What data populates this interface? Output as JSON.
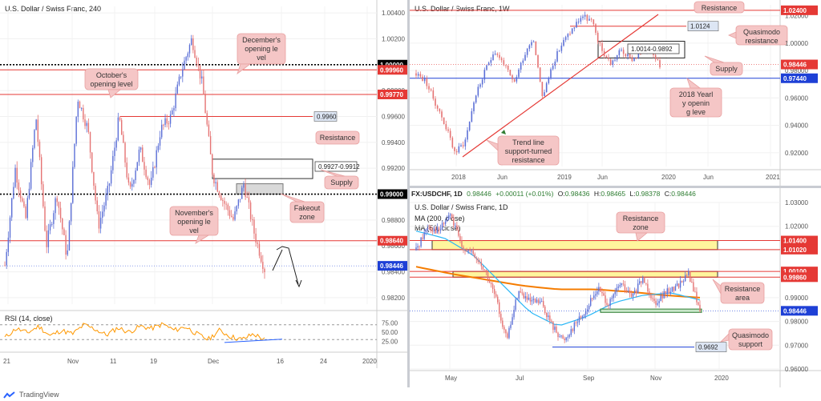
{
  "chart_data": [
    {
      "type": "candlestick",
      "title": "U.S. Dollar / Swiss Franc, 240",
      "x_ticks": [
        "21",
        "Nov",
        "11",
        "19",
        "Dec",
        "16",
        "24",
        "2020"
      ],
      "y_ticks": [
        "1.00400",
        "1.00200",
        "1.00000",
        "0.99800",
        "0.99600",
        "0.99400",
        "0.99200",
        "0.99000",
        "0.98800",
        "0.98600",
        "0.98400",
        "0.98200"
      ],
      "ylim": [
        0.9815,
        1.0045
      ],
      "levels": [
        {
          "value": 1.0,
          "label": "1.00000",
          "color": "#000000",
          "style": "dotted"
        },
        {
          "value": 0.9996,
          "label": "0.99960",
          "color": "#e53935",
          "style": "solid"
        },
        {
          "value": 0.9977,
          "label": "0.99770",
          "color": "#e53935",
          "style": "solid"
        },
        {
          "value": 0.99,
          "label": "0.99000",
          "color": "#000000",
          "style": "dotted"
        },
        {
          "value": 0.9864,
          "label": "0.98640",
          "color": "#e53935",
          "style": "solid"
        },
        {
          "value": 0.98446,
          "label": "0.98446",
          "color": "#1e40d6",
          "style": "current"
        }
      ],
      "resistance_line": {
        "value": 0.996,
        "label": "0.9960"
      },
      "zones": [
        {
          "label": "0.9927-0.9912",
          "from": 0.9912,
          "to": 0.9927
        },
        {
          "label": "",
          "from": 0.99,
          "to": 0.9908
        }
      ],
      "annotations": [
        "December's opening level",
        "October's opening level",
        "Resistance",
        "Supply",
        "Fakeout zone",
        "November's opening level"
      ],
      "indicator": {
        "name": "RSI (14, close)",
        "y_ticks": [
          "75.00",
          "50.00",
          "25.00"
        ],
        "guides": [
          70,
          30
        ]
      }
    },
    {
      "type": "candlestick",
      "title": "U.S. Dollar / Swiss Franc, 1W",
      "x_ticks": [
        "2018",
        "Jun",
        "2019",
        "Jun",
        "2020",
        "Jun",
        "2021"
      ],
      "y_ticks": [
        "1.02000",
        "1.00000",
        "0.98000",
        "0.96000",
        "0.94000",
        "0.92000"
      ],
      "ylim": [
        0.91,
        1.028
      ],
      "levels": [
        {
          "value": 1.024,
          "label": "1.02400",
          "color": "#e53935",
          "style": "solid"
        },
        {
          "value": 0.98446,
          "label": "0.98446",
          "color": "#e53935",
          "style": "current"
        },
        {
          "value": 0.9744,
          "label": "0.97440",
          "color": "#1e40d6",
          "style": "solid"
        }
      ],
      "resistance_line": {
        "value": 1.0124,
        "label": "1.0124"
      },
      "zones": [
        {
          "label": "1.0014-0.9892",
          "from": 0.9892,
          "to": 1.0014
        }
      ],
      "annotations": [
        "Resistance",
        "Quasimodo resistance",
        "Supply",
        "2018 Yearly opening level",
        "Trend line support-turned resistance"
      ]
    },
    {
      "type": "candlestick",
      "title": "U.S. Dollar / Swiss Franc, 1D",
      "symbol_line": "FX:USDCHF, 1D",
      "ohlc": {
        "last": "0.98446",
        "change": "+0.00011 (+0.01%)",
        "o_label": "O:",
        "o": "0.98436",
        "h_label": "H:",
        "h": "0.98465",
        "l_label": "L:",
        "l": "0.98378",
        "c_label": "C:",
        "c": "0.98446"
      },
      "ma_labels": [
        "MA (200, close)",
        "MA (50, close)"
      ],
      "x_ticks": [
        "May",
        "Jul",
        "Sep",
        "Nov",
        "2020"
      ],
      "y_ticks": [
        "1.03000",
        "1.02000",
        "1.01000",
        "1.00000",
        "0.99000",
        "0.98000",
        "0.97000",
        "0.96000"
      ],
      "ylim": [
        0.96,
        1.03
      ],
      "levels": [
        {
          "value": 1.014,
          "label": "1.01400",
          "color": "#e53935",
          "style": "solid"
        },
        {
          "value": 1.0102,
          "label": "1.01020",
          "color": "#e53935",
          "style": "solid"
        },
        {
          "value": 1.001,
          "label": "1.00100",
          "color": "#e53935",
          "style": "solid"
        },
        {
          "value": 0.9986,
          "label": "0.99860",
          "color": "#e53935",
          "style": "solid"
        },
        {
          "value": 0.98446,
          "label": "0.98446",
          "color": "#1e40d6",
          "style": "current"
        }
      ],
      "support_line": {
        "value": 0.9692,
        "label": "0.9692"
      },
      "zones": [
        {
          "label": "",
          "from": 1.0102,
          "to": 1.014
        },
        {
          "label": "",
          "from": 0.9986,
          "to": 1.001
        }
      ],
      "annotations": [
        "Resistance zone",
        "Resistance area",
        "Quasimodo support"
      ]
    }
  ],
  "footer": {
    "brand": "TradingView"
  },
  "colors": {
    "up": "#5b6fd6",
    "down": "#e57373",
    "level_red": "#e53935",
    "level_blue": "#1e40d6",
    "zone_yellow": "#fff59d",
    "zone_grey": "#d9d9d9",
    "callout_bg": "#f5c6c6",
    "callout_border": "#e8a0a0",
    "rsi": "#ff9800",
    "ma200": "#f57c00",
    "ma50": "#29b6f6",
    "support_green": "#2e7d32"
  }
}
